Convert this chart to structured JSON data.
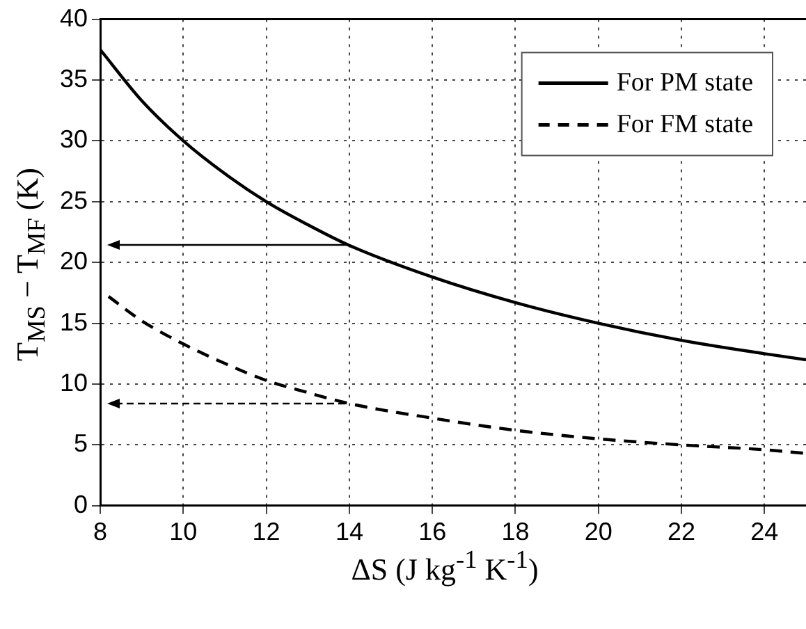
{
  "chart_data": {
    "type": "line",
    "xlabel": "ΔS (J kg$^{-1}$ K$^{-1}$)",
    "ylabel": "T$_{MS}$ − T$_{MF}$ (K)",
    "xlim": [
      8,
      25
    ],
    "xticks": [
      8,
      10,
      12,
      14,
      16,
      18,
      20,
      22,
      24
    ],
    "ylim": [
      0,
      40
    ],
    "yticks": [
      0,
      5,
      10,
      15,
      20,
      25,
      30,
      35,
      40
    ],
    "grid": true,
    "legend": "top right",
    "marker": "none",
    "series": [
      {
        "name": "For PM state",
        "color": "#000000",
        "line_style": "solid",
        "x": [
          8,
          9,
          10,
          11,
          12,
          13,
          14,
          16,
          18,
          20,
          22,
          24,
          25
        ],
        "values": [
          37.5,
          33.3,
          30,
          27.3,
          25,
          23.1,
          21.4,
          18.8,
          16.7,
          15,
          13.6,
          12.5,
          12
        ]
      },
      {
        "name": "For FM state",
        "color": "#000000",
        "line_style": "dashed",
        "x": [
          8.2,
          9,
          10,
          11,
          12,
          13,
          14,
          16,
          18,
          20,
          22,
          24,
          25
        ],
        "values": [
          17.2,
          15.2,
          13.3,
          11.7,
          10.3,
          9.3,
          8.4,
          7.2,
          6.2,
          5.5,
          5.0,
          4.6,
          4.3
        ]
      }
    ]
  }
}
